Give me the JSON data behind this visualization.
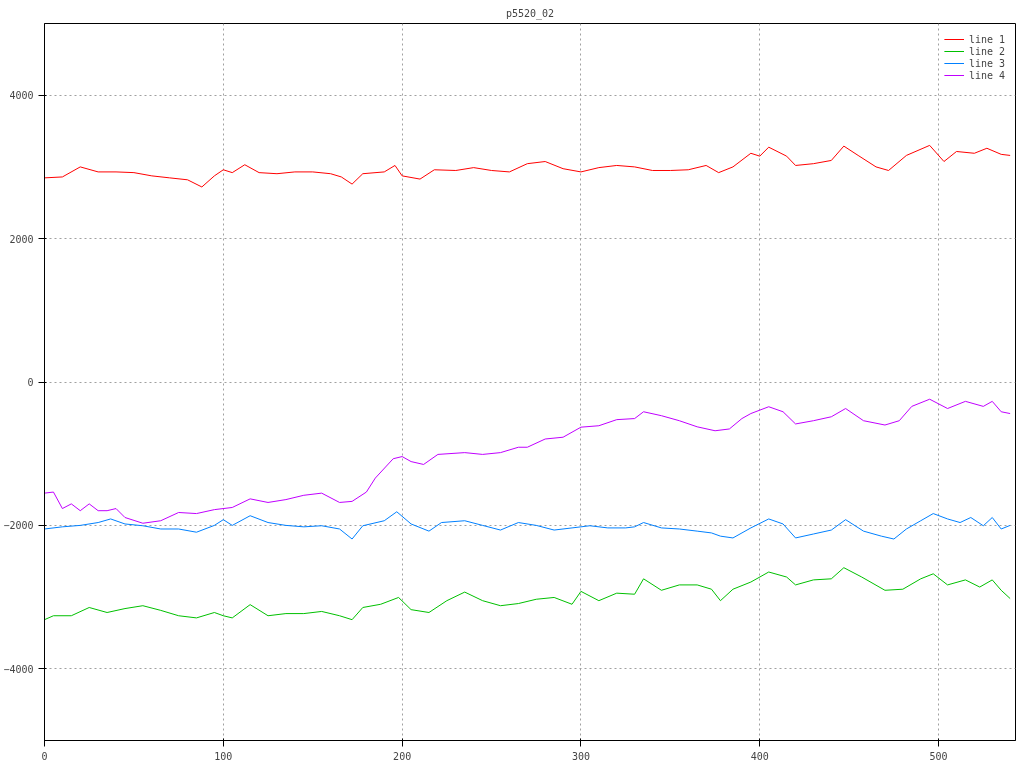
{
  "chart_data": {
    "type": "line",
    "title": "p5520_02",
    "xlim": [
      0,
      543
    ],
    "ylim": [
      -5000,
      5000
    ],
    "xticks": [
      0,
      100,
      200,
      300,
      400,
      500
    ],
    "yticks": [
      -4000,
      -2000,
      0,
      2000,
      4000
    ],
    "grid": true,
    "legend": "top right",
    "line_style": "solid",
    "series": [
      {
        "name": "line 1",
        "color": "#ff0000",
        "x": [
          0,
          10,
          20,
          30,
          40,
          50,
          60,
          70,
          80,
          88,
          95,
          100,
          105,
          112,
          120,
          130,
          140,
          150,
          160,
          166,
          172,
          178,
          190,
          196,
          200,
          210,
          218,
          230,
          240,
          250,
          260,
          270,
          280,
          290,
          300,
          310,
          320,
          330,
          340,
          350,
          360,
          370,
          377,
          385,
          395,
          400,
          405,
          415,
          420,
          430,
          440,
          447,
          455,
          465,
          472,
          482,
          495,
          503,
          510,
          520,
          527,
          535,
          540
        ],
        "values": [
          2847,
          2860,
          3000,
          2930,
          2930,
          2920,
          2875,
          2847,
          2820,
          2720,
          2875,
          2960,
          2920,
          3030,
          2920,
          2905,
          2930,
          2930,
          2905,
          2860,
          2760,
          2905,
          2930,
          3020,
          2875,
          2830,
          2960,
          2950,
          2990,
          2950,
          2930,
          3045,
          3075,
          2975,
          2930,
          2990,
          3020,
          3000,
          2950,
          2950,
          2960,
          3020,
          2920,
          3000,
          3190,
          3150,
          3275,
          3150,
          3020,
          3045,
          3090,
          3290,
          3160,
          3000,
          2950,
          3160,
          3300,
          3075,
          3215,
          3190,
          3260,
          3175,
          3160
        ]
      },
      {
        "name": "line 2",
        "color": "#00c000",
        "x": [
          0,
          5,
          15,
          25,
          35,
          45,
          55,
          65,
          75,
          85,
          95,
          100,
          105,
          115,
          125,
          135,
          145,
          155,
          165,
          172,
          178,
          188,
          198,
          205,
          215,
          225,
          235,
          245,
          255,
          265,
          275,
          285,
          295,
          300,
          310,
          320,
          330,
          335,
          345,
          355,
          365,
          373,
          378,
          385,
          395,
          405,
          415,
          420,
          430,
          440,
          447,
          457,
          470,
          480,
          490,
          497,
          505,
          515,
          523,
          530,
          535,
          540
        ],
        "values": [
          -3315,
          -3260,
          -3260,
          -3145,
          -3215,
          -3160,
          -3120,
          -3185,
          -3260,
          -3290,
          -3215,
          -3260,
          -3290,
          -3105,
          -3260,
          -3230,
          -3230,
          -3200,
          -3260,
          -3315,
          -3145,
          -3100,
          -3005,
          -3175,
          -3215,
          -3050,
          -2930,
          -3050,
          -3120,
          -3090,
          -3030,
          -3005,
          -3100,
          -2920,
          -3050,
          -2945,
          -2960,
          -2745,
          -2905,
          -2830,
          -2830,
          -2890,
          -3050,
          -2890,
          -2790,
          -2650,
          -2720,
          -2830,
          -2760,
          -2745,
          -2590,
          -2720,
          -2905,
          -2890,
          -2745,
          -2675,
          -2830,
          -2760,
          -2860,
          -2760,
          -2905,
          -3020
        ]
      },
      {
        "name": "line 3",
        "color": "#0080ff",
        "x": [
          0,
          10,
          20,
          30,
          37,
          45,
          55,
          65,
          75,
          85,
          95,
          100,
          105,
          115,
          125,
          135,
          145,
          155,
          165,
          172,
          178,
          190,
          197,
          205,
          215,
          222,
          235,
          245,
          255,
          265,
          275,
          285,
          295,
          305,
          315,
          325,
          330,
          335,
          345,
          355,
          365,
          373,
          378,
          385,
          395,
          405,
          413,
          420,
          430,
          440,
          448,
          458,
          468,
          475,
          482,
          490,
          497,
          505,
          512,
          518,
          525,
          530,
          535,
          540
        ],
        "values": [
          -2050,
          -2020,
          -2000,
          -1960,
          -1910,
          -1980,
          -2005,
          -2050,
          -2050,
          -2095,
          -2000,
          -1920,
          -2000,
          -1865,
          -1960,
          -2000,
          -2020,
          -2005,
          -2050,
          -2190,
          -2005,
          -1935,
          -1810,
          -1980,
          -2080,
          -1960,
          -1935,
          -2000,
          -2065,
          -1960,
          -2000,
          -2065,
          -2035,
          -2005,
          -2035,
          -2035,
          -2020,
          -1960,
          -2035,
          -2050,
          -2080,
          -2105,
          -2150,
          -2175,
          -2035,
          -1910,
          -1980,
          -2175,
          -2120,
          -2065,
          -1920,
          -2080,
          -2150,
          -2190,
          -2050,
          -1935,
          -1835,
          -1910,
          -1960,
          -1890,
          -2005,
          -1890,
          -2050,
          -2000
        ]
      },
      {
        "name": "line 4",
        "color": "#c000ff",
        "x": [
          0,
          5,
          10,
          15,
          20,
          25,
          30,
          35,
          40,
          45,
          55,
          65,
          75,
          85,
          95,
          105,
          115,
          125,
          135,
          145,
          155,
          165,
          172,
          180,
          185,
          195,
          200,
          205,
          212,
          220,
          235,
          245,
          255,
          265,
          270,
          280,
          290,
          300,
          310,
          320,
          330,
          335,
          345,
          355,
          365,
          375,
          383,
          390,
          395,
          405,
          413,
          420,
          430,
          440,
          448,
          458,
          470,
          478,
          485,
          495,
          505,
          515,
          525,
          530,
          535,
          540
        ],
        "values": [
          -1550,
          -1535,
          -1765,
          -1700,
          -1795,
          -1700,
          -1795,
          -1795,
          -1765,
          -1890,
          -1970,
          -1935,
          -1820,
          -1835,
          -1780,
          -1750,
          -1630,
          -1680,
          -1640,
          -1580,
          -1550,
          -1680,
          -1665,
          -1535,
          -1340,
          -1070,
          -1040,
          -1110,
          -1150,
          -1010,
          -985,
          -1010,
          -985,
          -910,
          -910,
          -795,
          -770,
          -630,
          -610,
          -525,
          -510,
          -415,
          -470,
          -540,
          -625,
          -680,
          -655,
          -510,
          -440,
          -345,
          -415,
          -585,
          -540,
          -485,
          -370,
          -540,
          -600,
          -540,
          -340,
          -240,
          -370,
          -270,
          -340,
          -270,
          -415,
          -440
        ]
      }
    ]
  }
}
